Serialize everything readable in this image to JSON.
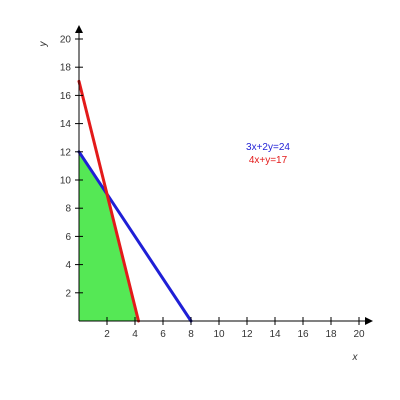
{
  "chart_data": {
    "type": "line",
    "xlabel": "x",
    "ylabel": "y",
    "xlim": [
      0,
      20
    ],
    "ylim": [
      0,
      20
    ],
    "x_ticks": [
      2,
      4,
      6,
      8,
      10,
      12,
      14,
      16,
      18,
      20
    ],
    "y_ticks": [
      2,
      4,
      6,
      8,
      10,
      12,
      14,
      16,
      18,
      20
    ],
    "grid": false,
    "lines": [
      {
        "name": "3x+2y=24",
        "color": "#1f1fd6",
        "points": [
          [
            0,
            12
          ],
          [
            8,
            0
          ]
        ]
      },
      {
        "name": "4x+y=17",
        "color": "#e31a1a",
        "points": [
          [
            0,
            17
          ],
          [
            4.25,
            0
          ]
        ]
      }
    ],
    "feasible_region": {
      "color": "#55e855",
      "vertices": [
        [
          0,
          0
        ],
        [
          0,
          12
        ],
        [
          2,
          9
        ],
        [
          4.25,
          0
        ]
      ]
    },
    "legend": {
      "placement": "right",
      "entries": [
        {
          "text": "3x+2y=24",
          "color": "#1f1fd6"
        },
        {
          "text": "4x+y=17",
          "color": "#e31a1a"
        }
      ]
    }
  }
}
